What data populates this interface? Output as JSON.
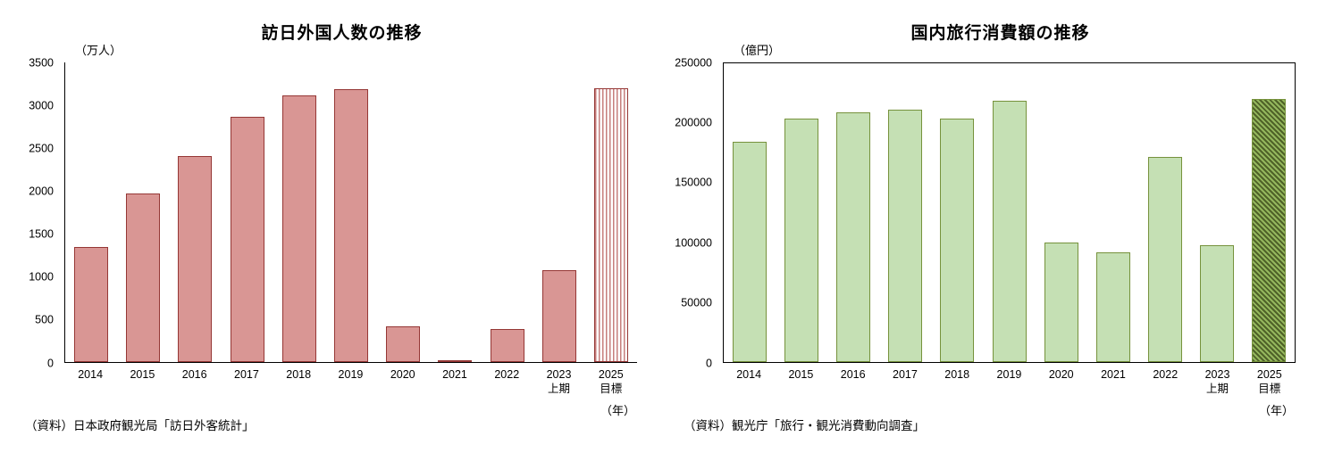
{
  "page": {
    "background": "#ffffff"
  },
  "chart_data": [
    {
      "type": "bar",
      "title": "訪日外国人数の推移",
      "ylabel": "（万人）",
      "xlabel": "（年）",
      "source": "（資料）日本政府観光局「訪日外客統計」",
      "categories": [
        "2014",
        "2015",
        "2016",
        "2017",
        "2018",
        "2019",
        "2020",
        "2021",
        "2022",
        "2023\n上期",
        "2025\n目標"
      ],
      "values": [
        1341,
        1973,
        2404,
        2869,
        3119,
        3188,
        412,
        25,
        383,
        1071,
        3200
      ],
      "ylim": [
        0,
        3500
      ],
      "ytick_step": 500,
      "grid": false,
      "legend": "none",
      "bar_fill": "#d99694",
      "bar_stroke": "#953735",
      "target_index": 10,
      "target_fill": "repeating-linear-gradient(90deg, #c67e7c 0px, #c67e7c 1.5px, #ffffff 1.5px, #ffffff 4px)",
      "target_stripe_color": "#c67e7c",
      "target_bg_color": "#ffffff"
    },
    {
      "type": "bar",
      "title": "国内旅行消費額の推移",
      "ylabel": "（億円）",
      "xlabel": "（年）",
      "source": "（資料）観光庁「旅行・観光消費動向調査」",
      "categories": [
        "2014",
        "2015",
        "2016",
        "2017",
        "2018",
        "2019",
        "2020",
        "2021",
        "2022",
        "2023\n上期",
        "2025\n目標"
      ],
      "values": [
        184000,
        204000,
        209000,
        211000,
        204000,
        219000,
        100000,
        92000,
        172000,
        98000,
        220000
      ],
      "ylim": [
        0,
        250000
      ],
      "ytick_step": 50000,
      "grid": false,
      "legend": "none",
      "bar_fill": "#c5e0b4",
      "bar_stroke": "#76923c",
      "target_index": 10,
      "target_fill": "repeating-linear-gradient(45deg, #4f6228 0px, #4f6228 2px, #94b75d 2px, #94b75d 4px)",
      "target_stripe_color": "#4f6228",
      "target_bg_color": "#94b75d"
    }
  ]
}
